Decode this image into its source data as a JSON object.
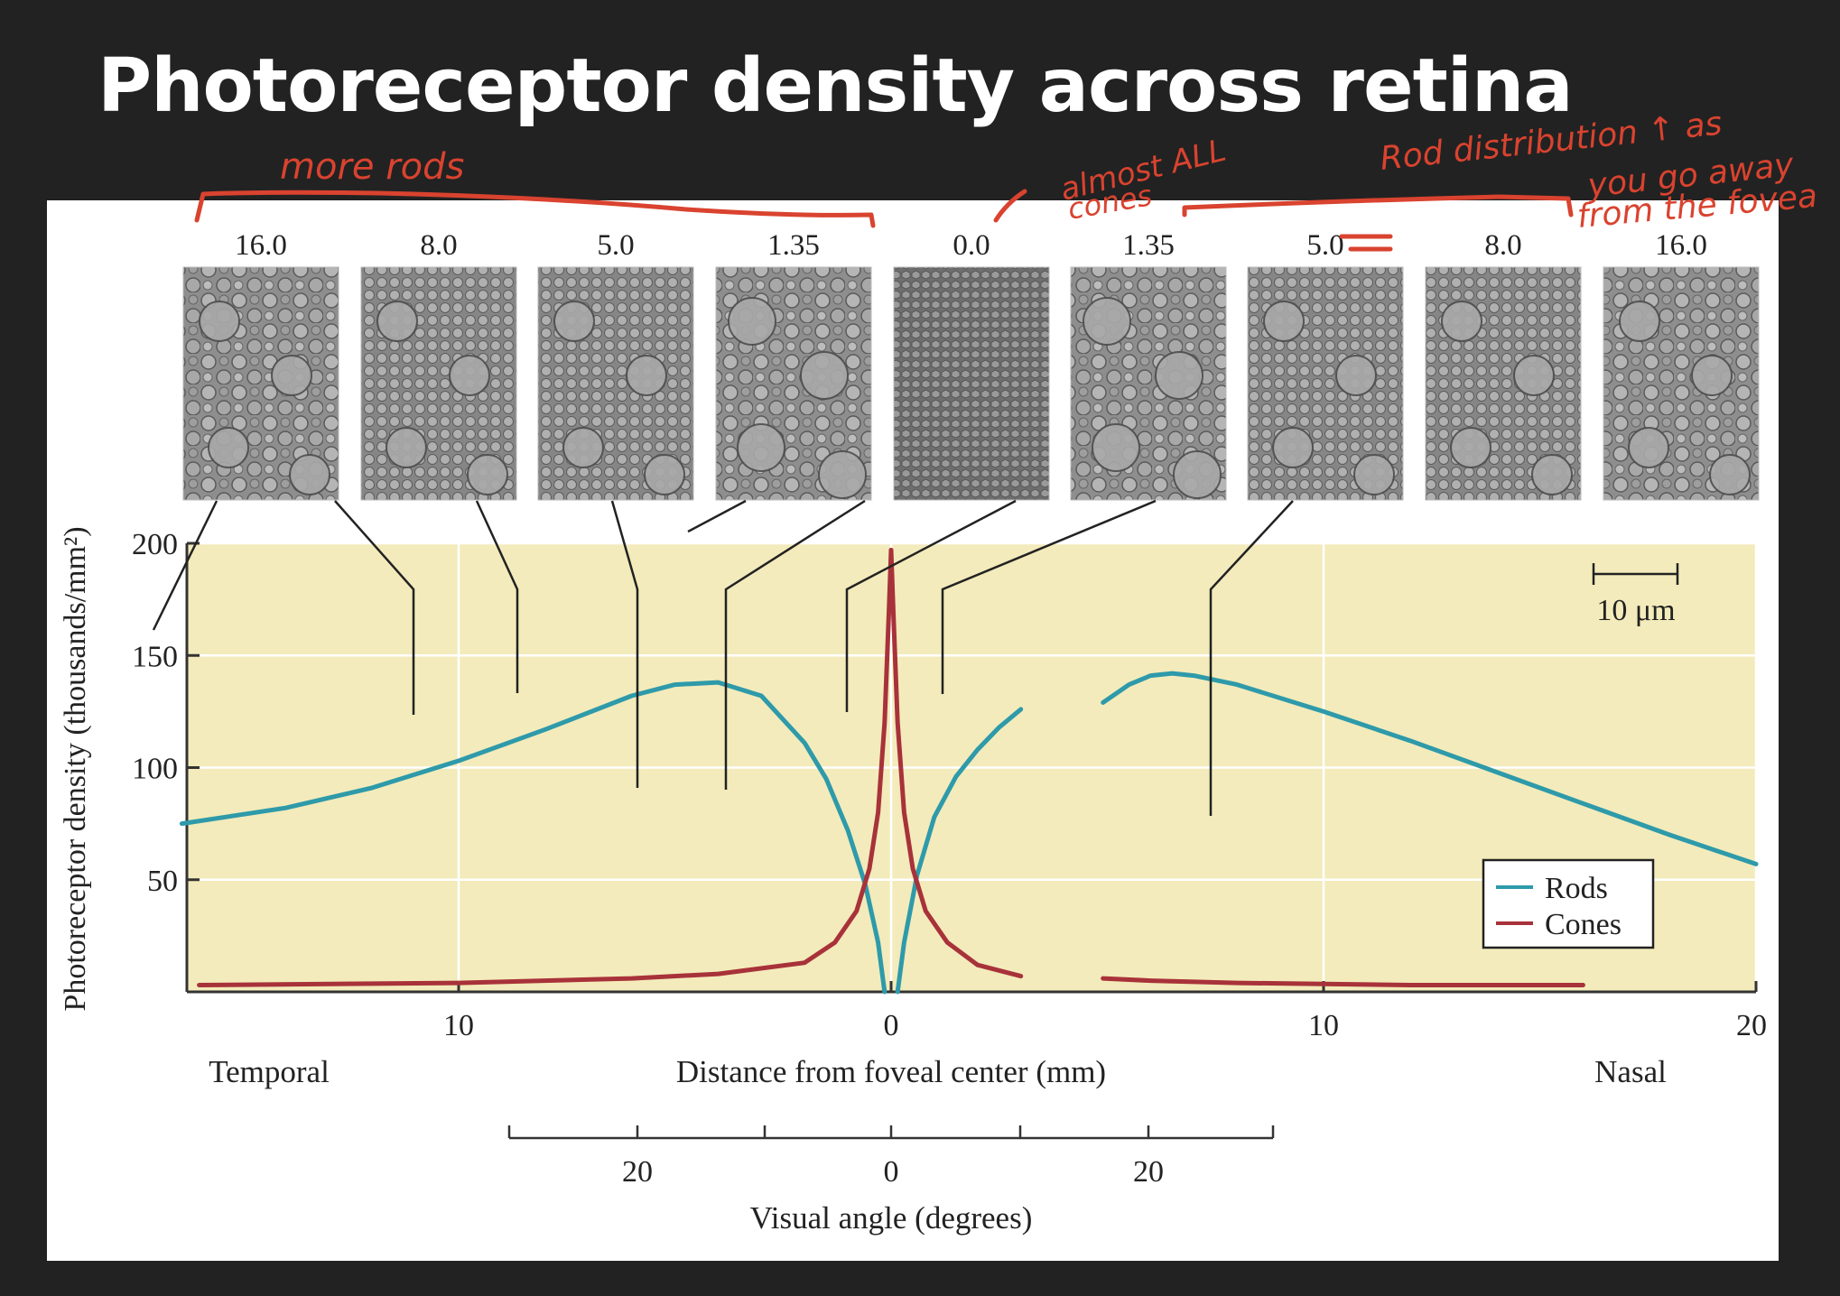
{
  "slide": {
    "title": "Photoreceptor density across retina"
  },
  "annotations": {
    "more_rods": "more rods",
    "almost_all_cones_line1": "almost ALL",
    "almost_all_cones_line2": "cones",
    "rod_distribution_line1": "Rod distribution ↑ as",
    "rod_distribution_line2": "you go away",
    "rod_distribution_line3": "from the fovea",
    "color": "#d9432f"
  },
  "micrographs": {
    "labels": [
      "16.0",
      "8.0",
      "5.0",
      "1.35",
      "0.0",
      "1.35",
      "5.0",
      "8.0",
      "16.0"
    ],
    "scale_bar": "10 μm"
  },
  "chart_data": {
    "type": "line",
    "title": "",
    "xlabel": "Distance from foveal center (mm)",
    "ylabel": "Photoreceptor density (thousands/mm²)",
    "secondary_xlabel": "Visual angle (degrees)",
    "x_side_labels": {
      "left": "Temporal",
      "right": "Nasal"
    },
    "xlim": [
      -16.6,
      20
    ],
    "ylim": [
      0,
      200
    ],
    "x_tick_labels": [
      {
        "x": -10,
        "label": "10"
      },
      {
        "x": 0,
        "label": "0"
      },
      {
        "x": 10,
        "label": "10"
      },
      {
        "x": 20,
        "label": "20"
      }
    ],
    "y_ticks": [
      50,
      100,
      150,
      200
    ],
    "y_tick_labels": [
      "50",
      "100",
      "150",
      "200"
    ],
    "visual_angle_ticks": [
      {
        "label": "20"
      },
      {
        "label": "0"
      },
      {
        "label": "20"
      }
    ],
    "grid": true,
    "background": "#f3ebbb",
    "legend": {
      "position": "lower right",
      "entries": [
        "Rods",
        "Cones"
      ]
    },
    "series": [
      {
        "name": "Rods",
        "color": "#2e9aaa",
        "segments": [
          {
            "x": [
              -16.4,
              -14,
              -12,
              -10,
              -8,
              -6,
              -5,
              -4,
              -3,
              -2,
              -1.5,
              -1,
              -0.6,
              -0.3,
              -0.15
            ],
            "y": [
              75,
              82,
              91,
              103,
              117,
              132,
              137,
              138,
              132,
              111,
              95,
              72,
              48,
              22,
              0
            ]
          },
          {
            "x": [
              0.15,
              0.3,
              0.6,
              1,
              1.5,
              2,
              2.5,
              3
            ],
            "y": [
              0,
              22,
              52,
              78,
              96,
              108,
              118,
              126
            ]
          },
          {
            "x": [
              4.9,
              5.5,
              6,
              6.5,
              7,
              8,
              10,
              12,
              14,
              16,
              18,
              20
            ],
            "y": [
              129,
              137,
              141,
              142,
              141,
              137,
              125,
              112,
              98,
              84,
              70,
              57
            ]
          }
        ]
      },
      {
        "name": "Cones",
        "color": "#a8323a",
        "segments": [
          {
            "x": [
              -16,
              -10,
              -6,
              -4,
              -2,
              -1.3,
              -0.8,
              -0.5,
              -0.3,
              -0.15,
              -0.05,
              0
            ],
            "y": [
              3,
              4,
              6,
              8,
              13,
              22,
              36,
              55,
              80,
              120,
              170,
              197
            ]
          },
          {
            "x": [
              0,
              0.05,
              0.15,
              0.3,
              0.5,
              0.8,
              1.3,
              2,
              3
            ],
            "y": [
              197,
              170,
              120,
              80,
              55,
              36,
              22,
              12,
              7
            ]
          },
          {
            "x": [
              4.9,
              6,
              8,
              10,
              12,
              14,
              16
            ],
            "y": [
              6,
              5,
              4,
              3.5,
              3,
              3,
              3
            ]
          }
        ]
      }
    ]
  }
}
